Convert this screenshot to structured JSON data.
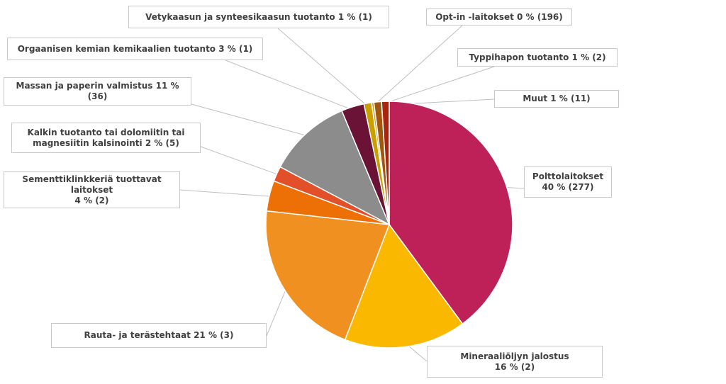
{
  "chart_data": {
    "type": "pie",
    "start_angle_deg": 0,
    "direction": "clockwise",
    "slices": [
      {
        "label": "Polttolaitokset\n40 % (277)",
        "category": "Polttolaitokset",
        "value": 40,
        "count": 277,
        "color": "#be2158"
      },
      {
        "label": "Mineraaliöljyn jalostus\n16 % (2)",
        "category": "Mineraaliöljyn jalostus",
        "value": 16,
        "count": 2,
        "color": "#fab800"
      },
      {
        "label": "Rauta- ja terästehtaat 21 % (3)",
        "category": "Rauta- ja terästehtaat",
        "value": 21,
        "count": 3,
        "color": "#f09020"
      },
      {
        "label": "Sementtiklinkkeriä tuottavat\nlaitokset\n4 % (2)",
        "category": "Sementtiklinkkeriä tuottavat laitokset",
        "value": 4,
        "count": 2,
        "color": "#ec7005"
      },
      {
        "label": "Kalkin tuotanto tai dolomiitin tai\nmagnesiitin kalsinointi 2 % (5)",
        "category": "Kalkin tuotanto tai dolomiitin tai magnesiitin kalsinointi",
        "value": 2,
        "count": 5,
        "color": "#e2502a"
      },
      {
        "label": "Massan ja paperin valmistus 11 %\n(36)",
        "category": "Massan ja paperin valmistus",
        "value": 11,
        "count": 36,
        "color": "#8c8c8c"
      },
      {
        "label": "Orgaanisen kemian kemikaalien tuotanto 3 % (1)",
        "category": "Orgaanisen kemian kemikaalien tuotanto",
        "value": 3,
        "count": 1,
        "color": "#6b1336"
      },
      {
        "label": "Vetykaasun ja synteesikaasun tuotanto 1 % (1)",
        "category": "Vetykaasun ja synteesikaasun tuotanto",
        "value": 1,
        "count": 1,
        "color": "#c9a000"
      },
      {
        "label": "Opt-in -laitokset 0 % (196)",
        "category": "Opt-in -laitokset",
        "value": 0.3,
        "count": 196,
        "color": "#d79a1a"
      },
      {
        "label": "Typpihapon tuotanto 1 % (2)",
        "category": "Typpihapon tuotanto",
        "value": 1,
        "count": 2,
        "color": "#a0560f"
      },
      {
        "label": "Muut    1 % (11)",
        "category": "Muut",
        "value": 1,
        "count": 11,
        "color": "#a8250f"
      }
    ]
  }
}
